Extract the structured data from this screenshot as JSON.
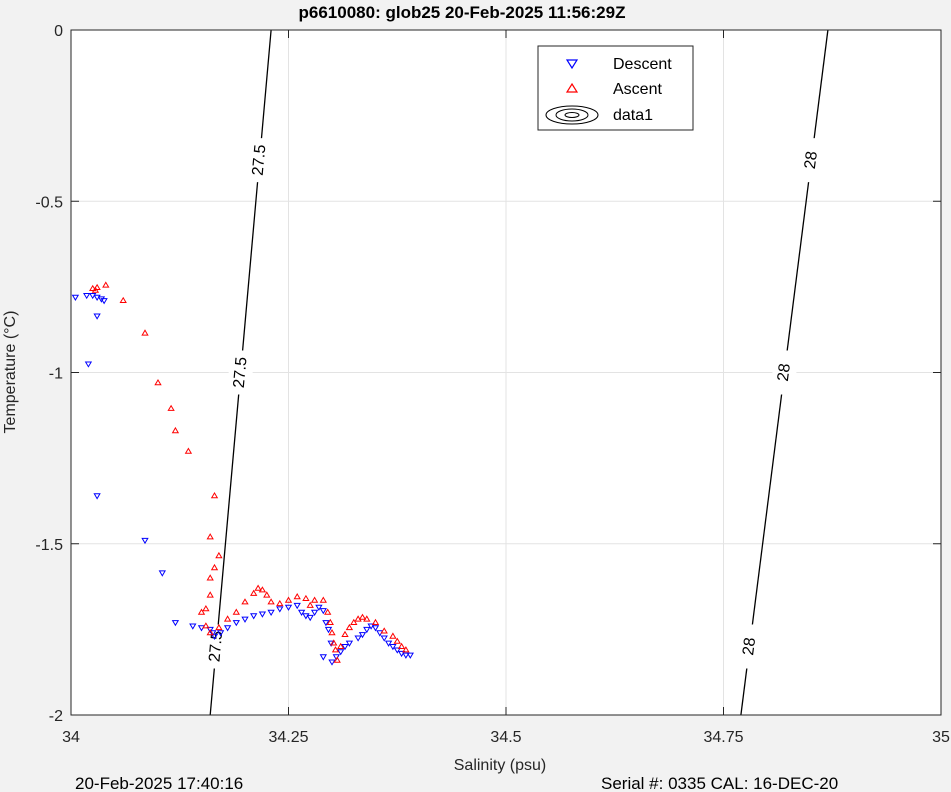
{
  "chart_data": {
    "type": "scatter",
    "title": "p6610080: glob25 20-Feb-2025 11:56:29Z",
    "xlabel": "Salinity (psu)",
    "ylabel": "Temperature (°C)",
    "xlim": [
      34,
      35
    ],
    "ylim": [
      -2,
      0
    ],
    "xticks": [
      "34",
      "34.25",
      "34.5",
      "34.75",
      "35"
    ],
    "yticks": [
      "0",
      "-0.5",
      "-1",
      "-1.5",
      "-2"
    ],
    "grid": true,
    "legend_position": "top-right",
    "legend": [
      "Descent",
      "Ascent",
      "data1"
    ],
    "series": [
      {
        "name": "Descent",
        "color": "#0000ff",
        "marker": "triangle-down",
        "points": [
          [
            34.005,
            -0.78
          ],
          [
            34.018,
            -0.775
          ],
          [
            34.025,
            -0.775
          ],
          [
            34.03,
            -0.78
          ],
          [
            34.035,
            -0.785
          ],
          [
            34.038,
            -0.79
          ],
          [
            34.03,
            -0.835
          ],
          [
            34.02,
            -0.975
          ],
          [
            34.03,
            -1.36
          ],
          [
            34.085,
            -1.49
          ],
          [
            34.105,
            -1.585
          ],
          [
            34.12,
            -1.73
          ],
          [
            34.14,
            -1.74
          ],
          [
            34.15,
            -1.745
          ],
          [
            34.16,
            -1.75
          ],
          [
            34.163,
            -1.76
          ],
          [
            34.165,
            -1.77
          ],
          [
            34.172,
            -1.76
          ],
          [
            34.18,
            -1.745
          ],
          [
            34.19,
            -1.73
          ],
          [
            34.2,
            -1.72
          ],
          [
            34.21,
            -1.71
          ],
          [
            34.22,
            -1.705
          ],
          [
            34.23,
            -1.7
          ],
          [
            34.24,
            -1.69
          ],
          [
            34.25,
            -1.685
          ],
          [
            34.26,
            -1.68
          ],
          [
            34.265,
            -1.7
          ],
          [
            34.27,
            -1.71
          ],
          [
            34.275,
            -1.715
          ],
          [
            34.28,
            -1.7
          ],
          [
            34.285,
            -1.685
          ],
          [
            34.29,
            -1.695
          ],
          [
            34.293,
            -1.73
          ],
          [
            34.296,
            -1.75
          ],
          [
            34.299,
            -1.79
          ],
          [
            34.29,
            -1.83
          ],
          [
            34.3,
            -1.845
          ],
          [
            34.305,
            -1.83
          ],
          [
            34.31,
            -1.815
          ],
          [
            34.315,
            -1.8
          ],
          [
            34.32,
            -1.79
          ],
          [
            34.33,
            -1.775
          ],
          [
            34.335,
            -1.765
          ],
          [
            34.34,
            -1.75
          ],
          [
            34.345,
            -1.74
          ],
          [
            34.35,
            -1.745
          ],
          [
            34.355,
            -1.76
          ],
          [
            34.36,
            -1.775
          ],
          [
            34.365,
            -1.79
          ],
          [
            34.37,
            -1.8
          ],
          [
            34.375,
            -1.81
          ],
          [
            34.38,
            -1.82
          ],
          [
            34.385,
            -1.825
          ],
          [
            34.39,
            -1.825
          ]
        ]
      },
      {
        "name": "Ascent",
        "color": "#ff0000",
        "marker": "triangle-up",
        "points": [
          [
            34.025,
            -0.755
          ],
          [
            34.028,
            -0.76
          ],
          [
            34.03,
            -0.752
          ],
          [
            34.04,
            -0.745
          ],
          [
            34.06,
            -0.79
          ],
          [
            34.085,
            -0.885
          ],
          [
            34.1,
            -1.03
          ],
          [
            34.115,
            -1.105
          ],
          [
            34.12,
            -1.17
          ],
          [
            34.135,
            -1.23
          ],
          [
            34.165,
            -1.36
          ],
          [
            34.16,
            -1.48
          ],
          [
            34.17,
            -1.535
          ],
          [
            34.165,
            -1.57
          ],
          [
            34.16,
            -1.6
          ],
          [
            34.16,
            -1.65
          ],
          [
            34.155,
            -1.69
          ],
          [
            34.15,
            -1.7
          ],
          [
            34.155,
            -1.74
          ],
          [
            34.16,
            -1.76
          ],
          [
            34.17,
            -1.745
          ],
          [
            34.18,
            -1.72
          ],
          [
            34.19,
            -1.7
          ],
          [
            34.2,
            -1.67
          ],
          [
            34.21,
            -1.645
          ],
          [
            34.215,
            -1.63
          ],
          [
            34.22,
            -1.635
          ],
          [
            34.225,
            -1.65
          ],
          [
            34.23,
            -1.67
          ],
          [
            34.24,
            -1.675
          ],
          [
            34.25,
            -1.665
          ],
          [
            34.26,
            -1.655
          ],
          [
            34.27,
            -1.66
          ],
          [
            34.275,
            -1.68
          ],
          [
            34.28,
            -1.665
          ],
          [
            34.29,
            -1.665
          ],
          [
            34.295,
            -1.7
          ],
          [
            34.298,
            -1.73
          ],
          [
            34.3,
            -1.76
          ],
          [
            34.302,
            -1.79
          ],
          [
            34.304,
            -1.81
          ],
          [
            34.306,
            -1.84
          ],
          [
            34.31,
            -1.8
          ],
          [
            34.315,
            -1.765
          ],
          [
            34.32,
            -1.745
          ],
          [
            34.325,
            -1.73
          ],
          [
            34.33,
            -1.72
          ],
          [
            34.335,
            -1.715
          ],
          [
            34.34,
            -1.72
          ],
          [
            34.35,
            -1.73
          ],
          [
            34.36,
            -1.755
          ],
          [
            34.37,
            -1.77
          ],
          [
            34.375,
            -1.785
          ],
          [
            34.38,
            -1.8
          ],
          [
            34.385,
            -1.81
          ]
        ]
      }
    ],
    "contours": [
      {
        "level": "27.5",
        "x_at_top": 34.23,
        "x_at_bottom": 34.16,
        "label_y": [
          -0.38,
          -1.0,
          -1.8
        ]
      },
      {
        "level": "28",
        "x_at_top": 34.87,
        "x_at_bottom": 34.77,
        "label_y": [
          -0.38,
          -1.0,
          -1.8
        ]
      }
    ]
  },
  "footer": {
    "left": "20-Feb-2025 17:40:16",
    "right": "Serial #: 0335  CAL: 16-DEC-20"
  }
}
